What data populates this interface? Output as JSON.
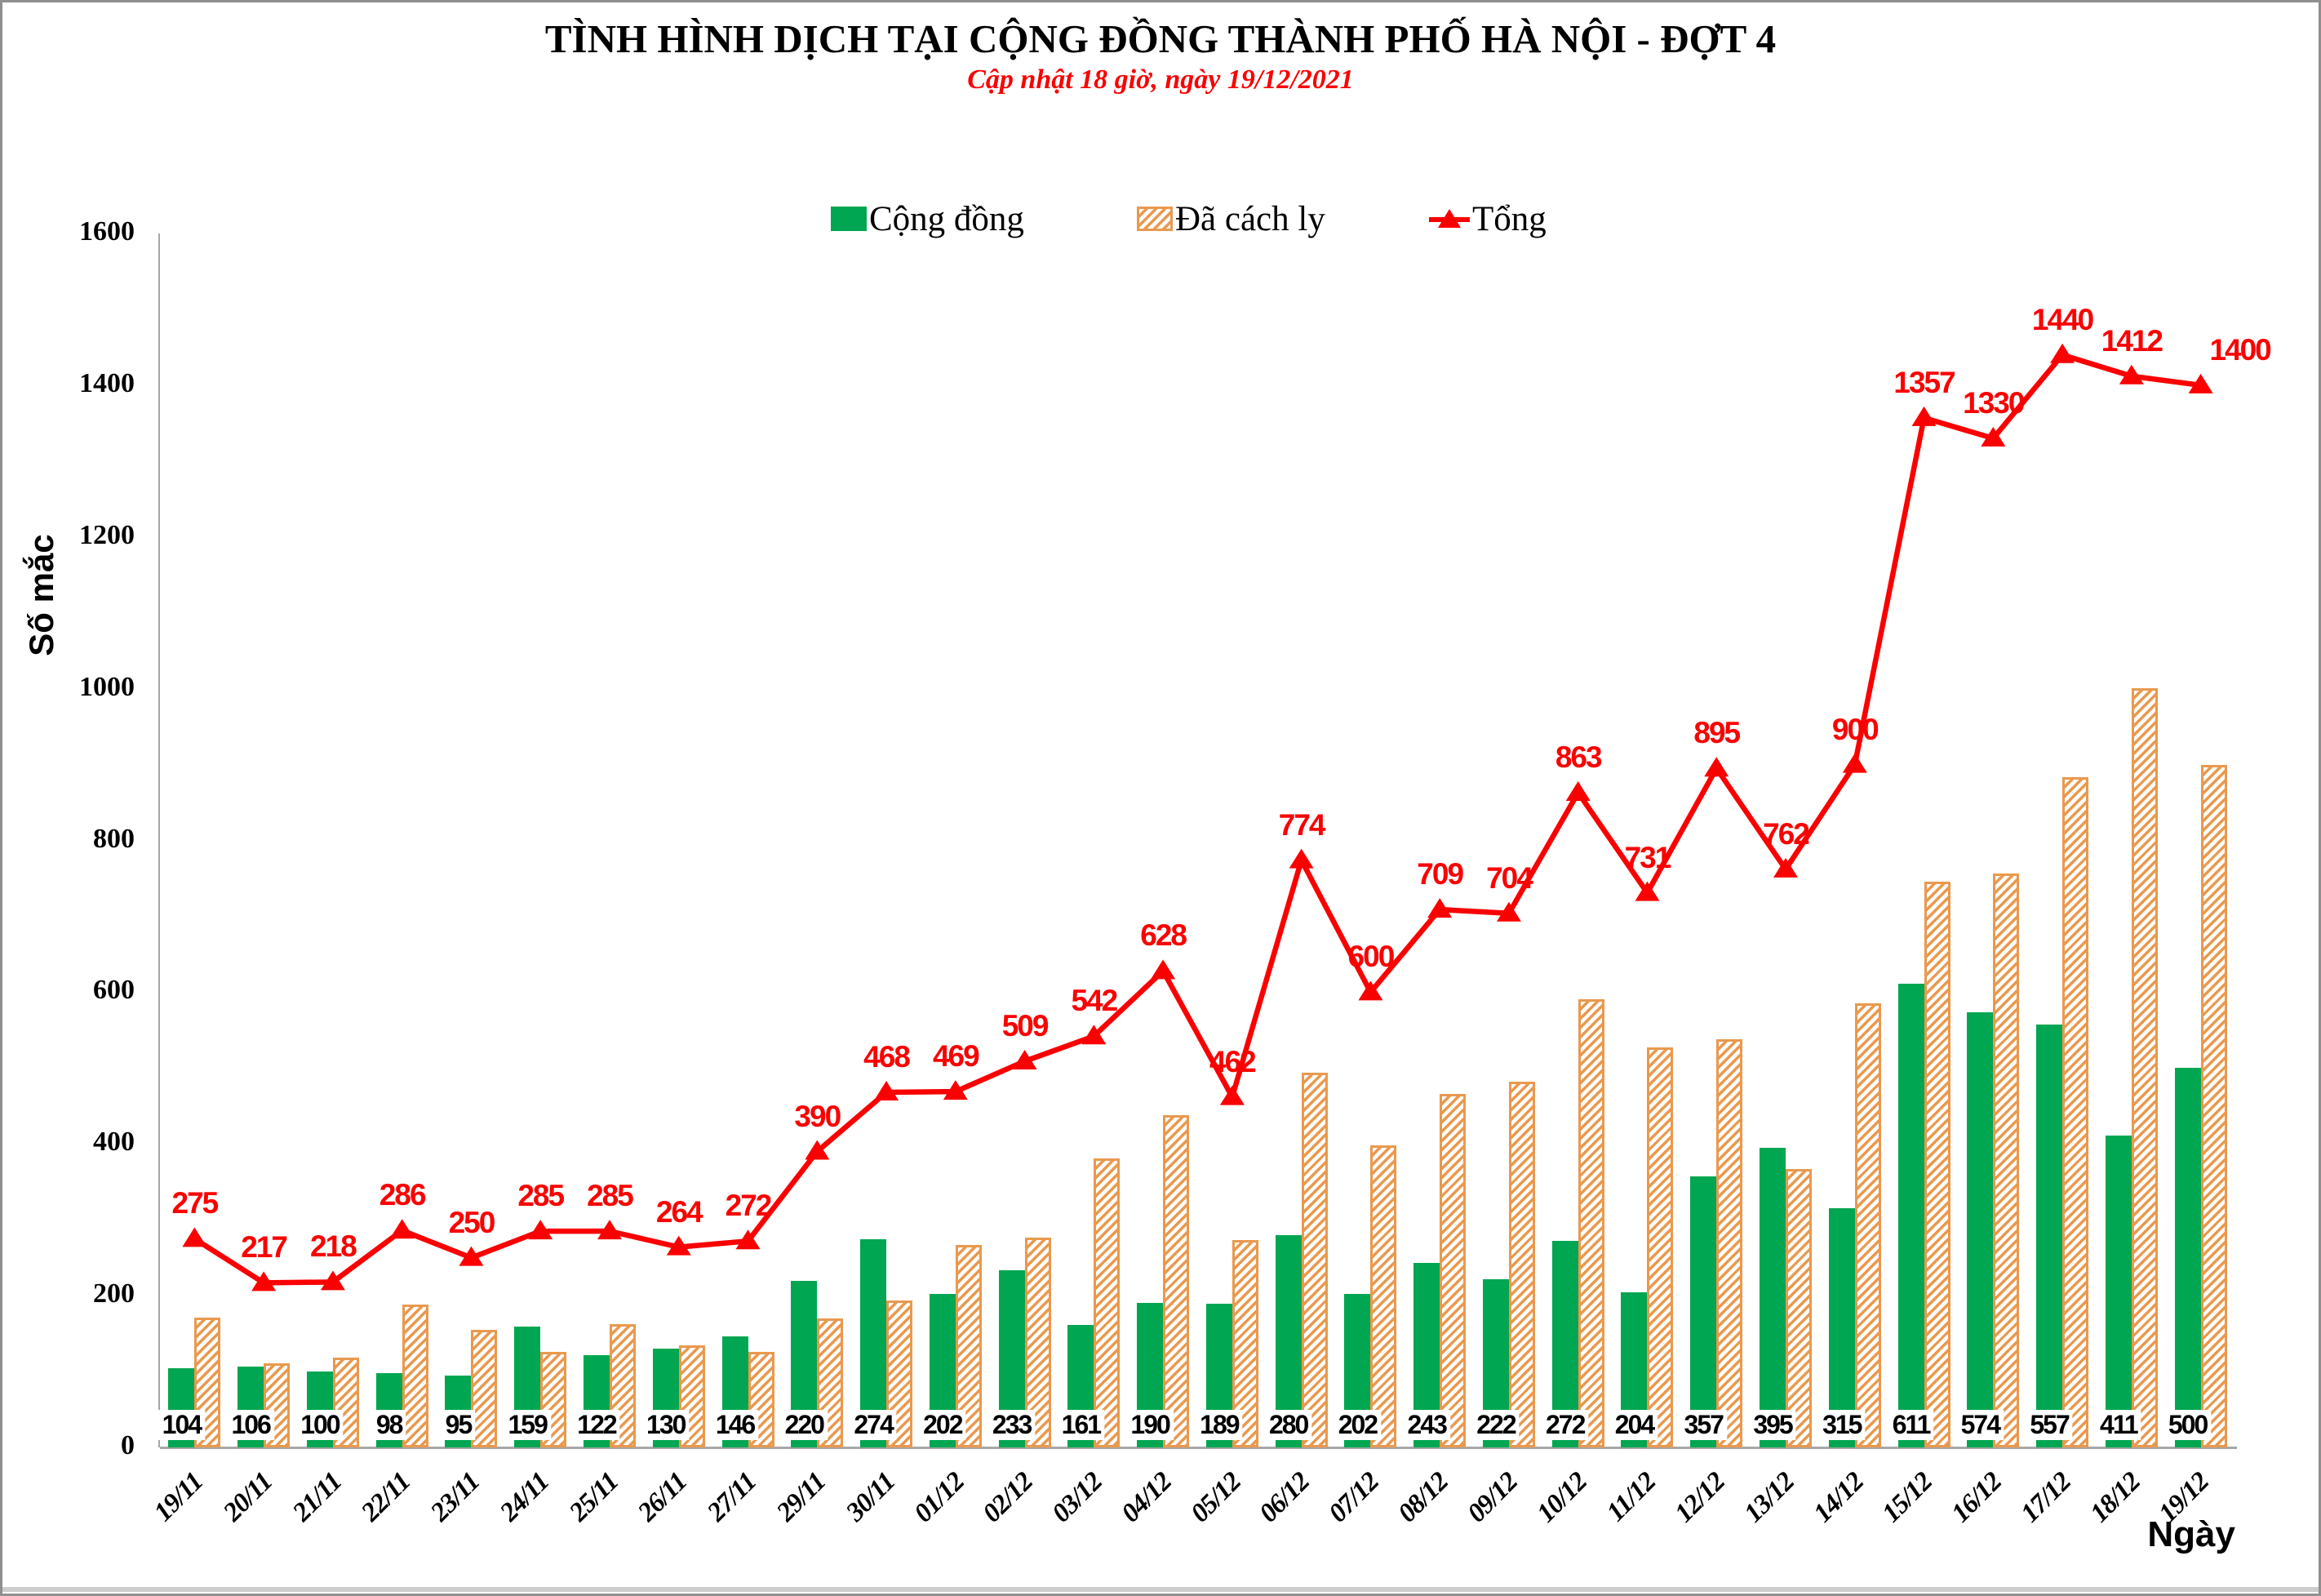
{
  "title": "TÌNH HÌNH DỊCH TẠI CỘNG ĐỒNG THÀNH PHỐ HÀ NỘI - ĐỢT 4",
  "subtitle": "Cập nhật 18 giờ, ngày 19/12/2021",
  "legend": {
    "items": [
      {
        "label": "Cộng đồng",
        "swatch": "green-solid-square"
      },
      {
        "label": "Đã cách ly",
        "swatch": "orange-hatch-square"
      },
      {
        "label": "Tổng",
        "swatch": "red-line-with-triangle"
      }
    ]
  },
  "y_axis": {
    "label": "Số mắc",
    "ticks": [
      0,
      200,
      400,
      600,
      800,
      1000,
      1200,
      1400,
      1600
    ]
  },
  "x_axis": {
    "label": "Ngày"
  },
  "colors": {
    "community_green": "#00A651",
    "quarantine_orange": "#E9994E",
    "total_red": "#FB0000",
    "axis_gray": "#A6A6A6",
    "label_text": "#000000"
  },
  "chart_data": {
    "type": "bar",
    "subtype": "grouped-bars-with-line-overlay",
    "title": "TÌNH HÌNH DỊCH TẠI CỘNG ĐỒNG THÀNH PHỐ HÀ NỘI - ĐỢT 4",
    "xlabel": "Ngày",
    "ylabel": "Số mắc",
    "ylim": [
      0,
      1600
    ],
    "grid": false,
    "legend_position": "top",
    "categories": [
      "19/11",
      "20/11",
      "21/11",
      "22/11",
      "23/11",
      "24/11",
      "25/11",
      "26/11",
      "27/11",
      "29/11",
      "30/11",
      "01/12",
      "02/12",
      "03/12",
      "04/12",
      "05/12",
      "06/12",
      "07/12",
      "08/12",
      "09/12",
      "10/12",
      "11/12",
      "12/12",
      "13/12",
      "14/12",
      "15/12",
      "16/12",
      "17/12",
      "18/12",
      "19/12"
    ],
    "series": [
      {
        "name": "Cộng đồng",
        "type": "bar",
        "color": "#00A651",
        "data_labels": true,
        "values": [
          104,
          106,
          100,
          98,
          95,
          159,
          122,
          130,
          146,
          220,
          274,
          202,
          233,
          161,
          190,
          189,
          280,
          202,
          243,
          222,
          272,
          204,
          357,
          395,
          315,
          611,
          574,
          557,
          411,
          500
        ]
      },
      {
        "name": "Đã cách ly",
        "type": "bar",
        "style": "diagonal-hatch",
        "color": "#E9994E",
        "data_labels": false,
        "values": [
          171,
          111,
          118,
          188,
          155,
          126,
          163,
          134,
          126,
          170,
          194,
          267,
          276,
          381,
          438,
          273,
          494,
          398,
          466,
          482,
          591,
          527,
          538,
          367,
          585,
          746,
          756,
          883,
          1001,
          900
        ]
      },
      {
        "name": "Tổng",
        "type": "line",
        "marker": "triangle-up",
        "color": "#FB0000",
        "data_labels": true,
        "values": [
          275,
          217,
          218,
          286,
          250,
          285,
          285,
          264,
          272,
          390,
          468,
          469,
          509,
          542,
          628,
          462,
          774,
          600,
          709,
          704,
          863,
          731,
          895,
          762,
          900,
          1357,
          1330,
          1440,
          1412,
          1400
        ]
      }
    ]
  }
}
